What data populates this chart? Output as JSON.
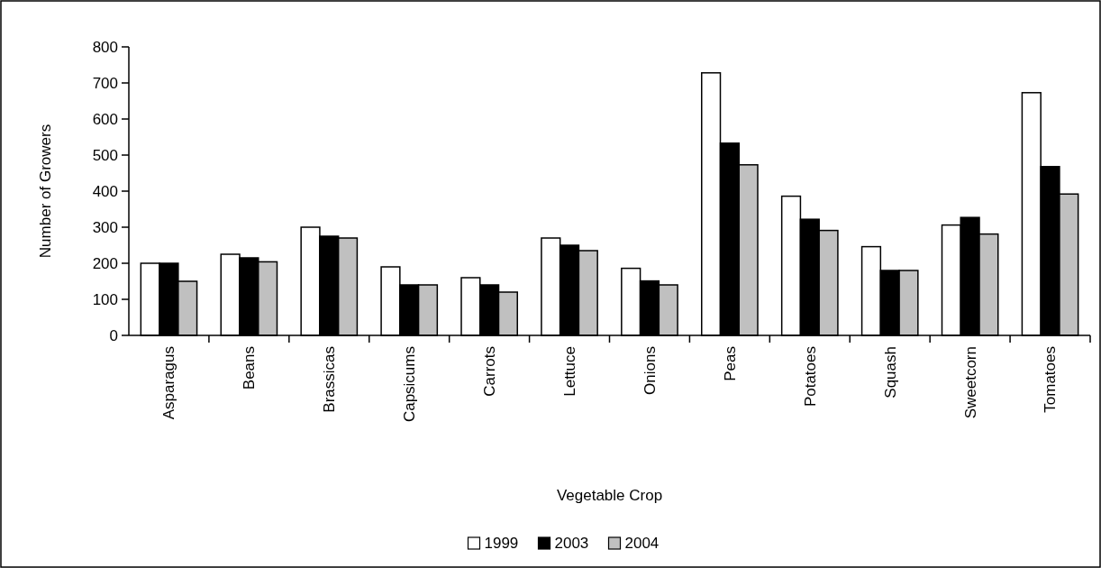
{
  "chart_data": {
    "type": "bar",
    "xlabel": "Vegetable Crop",
    "ylabel": "Number of Growers",
    "categories": [
      "Asparagus",
      "Beans",
      "Brassicas",
      "Capsicums",
      "Carrots",
      "Lettuce",
      "Onions",
      "Peas",
      "Potatoes",
      "Squash",
      "Sweetcorn",
      "Tomatoes"
    ],
    "series": [
      {
        "name": "1999",
        "color": "#ffffff",
        "values": [
          200,
          225,
          300,
          190,
          160,
          270,
          186,
          728,
          386,
          246,
          306,
          673
        ]
      },
      {
        "name": "2003",
        "color": "#000000",
        "values": [
          200,
          215,
          275,
          140,
          140,
          250,
          151,
          533,
          322,
          180,
          327,
          468
        ]
      },
      {
        "name": "2004",
        "color": "#c0c0c0",
        "values": [
          150,
          204,
          270,
          140,
          120,
          235,
          140,
          473,
          291,
          180,
          281,
          392
        ]
      }
    ],
    "ylim": [
      0,
      800
    ],
    "yticks": [
      0,
      100,
      200,
      300,
      400,
      500,
      600,
      700,
      800
    ],
    "grid": false,
    "legend": "bottom"
  }
}
